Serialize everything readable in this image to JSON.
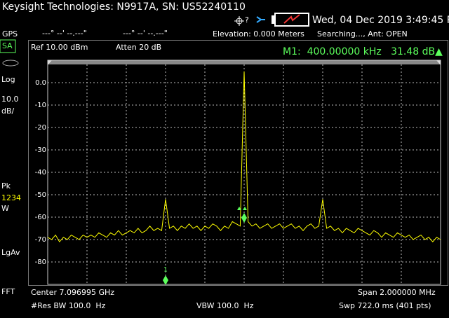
{
  "header": {
    "title": "Keysight Technologies: N9917A, SN: US52240110",
    "datetime": "Wed, 04 Dec 2019 3:49:45 PM",
    "gps": "GPS",
    "latitude": "---° --' --.---\"",
    "longitude": "---° --' --.---\"",
    "elevation": "Elevation: 0.000 Meters",
    "status": "Searching..., Ant: OPEN"
  },
  "side_panel": {
    "mode": "SA",
    "scale": "Log",
    "scale_value": "10.0",
    "scale_unit": "dB/",
    "detector": "Pk",
    "traces": "1234",
    "trace_mode": "W",
    "average": "LgAv",
    "fft": "FFT"
  },
  "chart_data": {
    "type": "line",
    "ref_level": "Ref 10.00 dBm",
    "attenuation": "Atten 20 dB",
    "marker_readout": "M1:  400.00000 kHz   31.48 dB▲",
    "marker_label": "1",
    "color": "#ffff00",
    "ylim": [
      -90,
      10
    ],
    "yticks": [
      {
        "value": 0,
        "label": "0.0"
      },
      -10,
      -20,
      -30,
      -40,
      -50,
      -60,
      -70,
      -80
    ],
    "grid": true,
    "values": [
      -69,
      -70,
      -68,
      -71,
      -69,
      -70,
      -68,
      -69,
      -70,
      -68,
      -69,
      -68,
      -69,
      -67,
      -68,
      -69,
      -67,
      -68,
      -66,
      -68,
      -67,
      -66,
      -67,
      -65,
      -67,
      -66,
      -64,
      -66,
      -65,
      -66,
      -52,
      -65,
      -64,
      -66,
      -64,
      -65,
      -63,
      -65,
      -64,
      -66,
      -64,
      -65,
      -63,
      -64,
      -66,
      -64,
      -65,
      -62,
      -63,
      -64,
      5,
      -62,
      -64,
      -63,
      -65,
      -64,
      -63,
      -65,
      -64,
      -63,
      -65,
      -64,
      -63,
      -65,
      -64,
      -66,
      -64,
      -63,
      -65,
      -64,
      -52,
      -65,
      -64,
      -66,
      -65,
      -67,
      -65,
      -66,
      -67,
      -65,
      -66,
      -67,
      -68,
      -66,
      -67,
      -69,
      -67,
      -68,
      -69,
      -67,
      -68,
      -69,
      -68,
      -70,
      -69,
      -68,
      -70,
      -69,
      -71,
      -69,
      -70
    ]
  },
  "footer": {
    "center": "Center 7.096995 GHz",
    "span": "Span 2.000000 MHz",
    "res_bw": "#Res BW 100.0  Hz",
    "vbw": "VBW 100.0  Hz",
    "sweep": "Swp 722.0 ms (401 pts)"
  }
}
